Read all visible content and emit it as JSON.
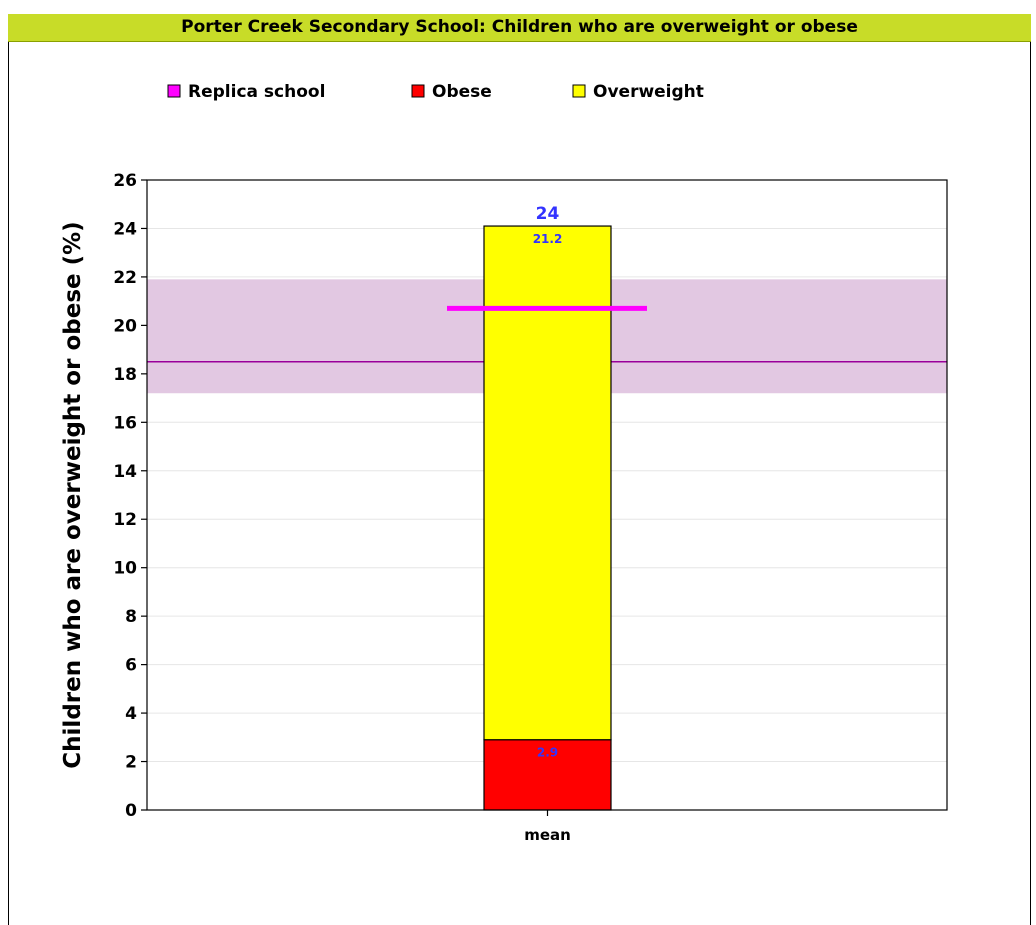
{
  "chart_data": {
    "type": "bar",
    "title": "Porter Creek Secondary School: Children who are overweight or obese",
    "ylabel": "Children who are overweight or obese (%)",
    "xlabel": "",
    "categories": [
      "mean"
    ],
    "ylim": [
      0,
      26
    ],
    "yticks": [
      0,
      2,
      4,
      6,
      8,
      10,
      12,
      14,
      16,
      18,
      20,
      22,
      24,
      26
    ],
    "grid": true,
    "legend_position": "top-left",
    "legend": [
      {
        "name": "Replica school",
        "color": "#ff00ff"
      },
      {
        "name": "Obese",
        "color": "#ff0000"
      },
      {
        "name": "Overweight",
        "color": "#ffff00"
      }
    ],
    "series": [
      {
        "name": "Obese",
        "values": [
          2.9
        ],
        "label": "2.9",
        "color": "#ff0000"
      },
      {
        "name": "Overweight",
        "values": [
          21.2
        ],
        "label": "21.2",
        "color": "#ffff00"
      }
    ],
    "total_label": "24",
    "total_value": 24.1,
    "replica_school_value": 20.7,
    "reference_band": {
      "low": 17.2,
      "high": 21.9,
      "mean": 18.5,
      "color": "#e2c8e2",
      "line_color": "#990099"
    },
    "label_color": "#3333ff"
  }
}
